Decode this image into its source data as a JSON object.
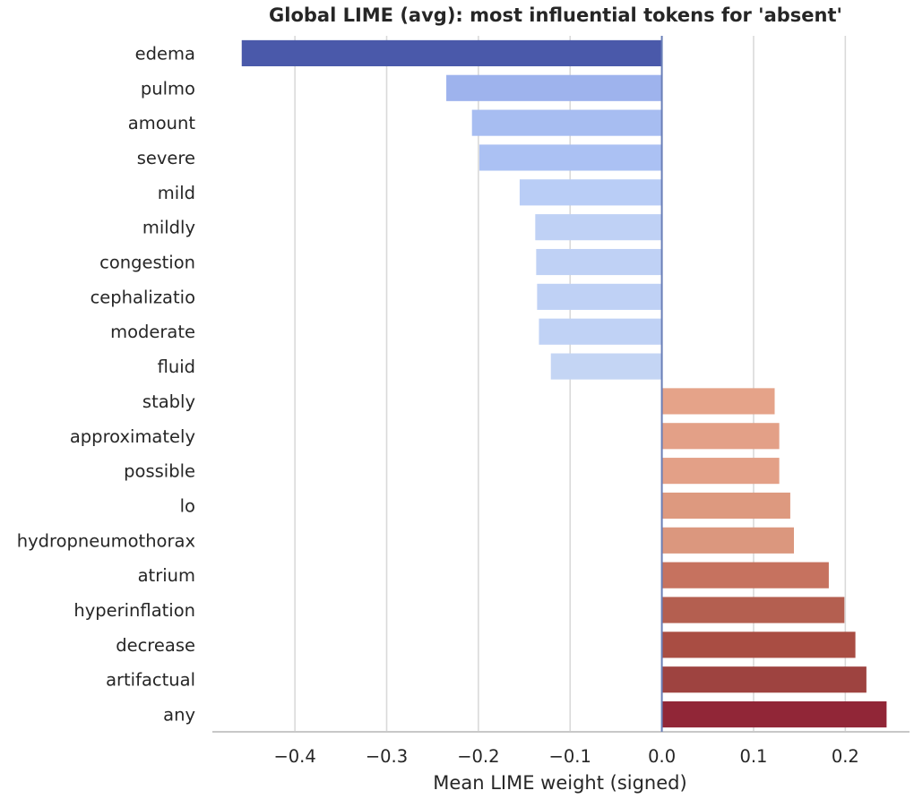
{
  "chart_data": {
    "type": "bar",
    "orientation": "horizontal",
    "title": "Global LIME (avg): most influential tokens for 'absent'",
    "xlabel": "Mean LIME weight (signed)",
    "ylabel": "",
    "xlim": [
      -0.49,
      0.27
    ],
    "xticks": [
      -0.4,
      -0.3,
      -0.2,
      -0.1,
      0.0,
      0.1,
      0.2
    ],
    "xtick_labels": [
      "−0.4",
      "−0.3",
      "−0.2",
      "−0.1",
      "0.0",
      "0.1",
      "0.2"
    ],
    "grid": true,
    "categories": [
      "edema",
      "pulmo",
      "amount",
      "severe",
      "mild",
      "mildly",
      "congestion",
      "cephalizatio",
      "moderate",
      "fluid",
      "stably",
      "approximately",
      "possible",
      "lo",
      "hydropneumothorax",
      "atrium",
      "hyperinflation",
      "decrease",
      "artifactual",
      "any"
    ],
    "values": [
      -0.458,
      -0.235,
      -0.207,
      -0.199,
      -0.155,
      -0.138,
      -0.137,
      -0.136,
      -0.134,
      -0.121,
      0.123,
      0.128,
      0.128,
      0.14,
      0.144,
      0.182,
      0.199,
      0.211,
      0.223,
      0.245
    ],
    "colors": [
      "#4a59aa",
      "#9eb3ed",
      "#a7bdf1",
      "#abc1f3",
      "#b9cdf6",
      "#bfd1f5",
      "#bfd1f5",
      "#bfd1f5",
      "#c0d2f5",
      "#c4d5f4",
      "#e5a389",
      "#e3a087",
      "#e3a087",
      "#dd997f",
      "#db977e",
      "#c6725f",
      "#b45f50",
      "#a94d43",
      "#9e4340",
      "#912637"
    ]
  }
}
